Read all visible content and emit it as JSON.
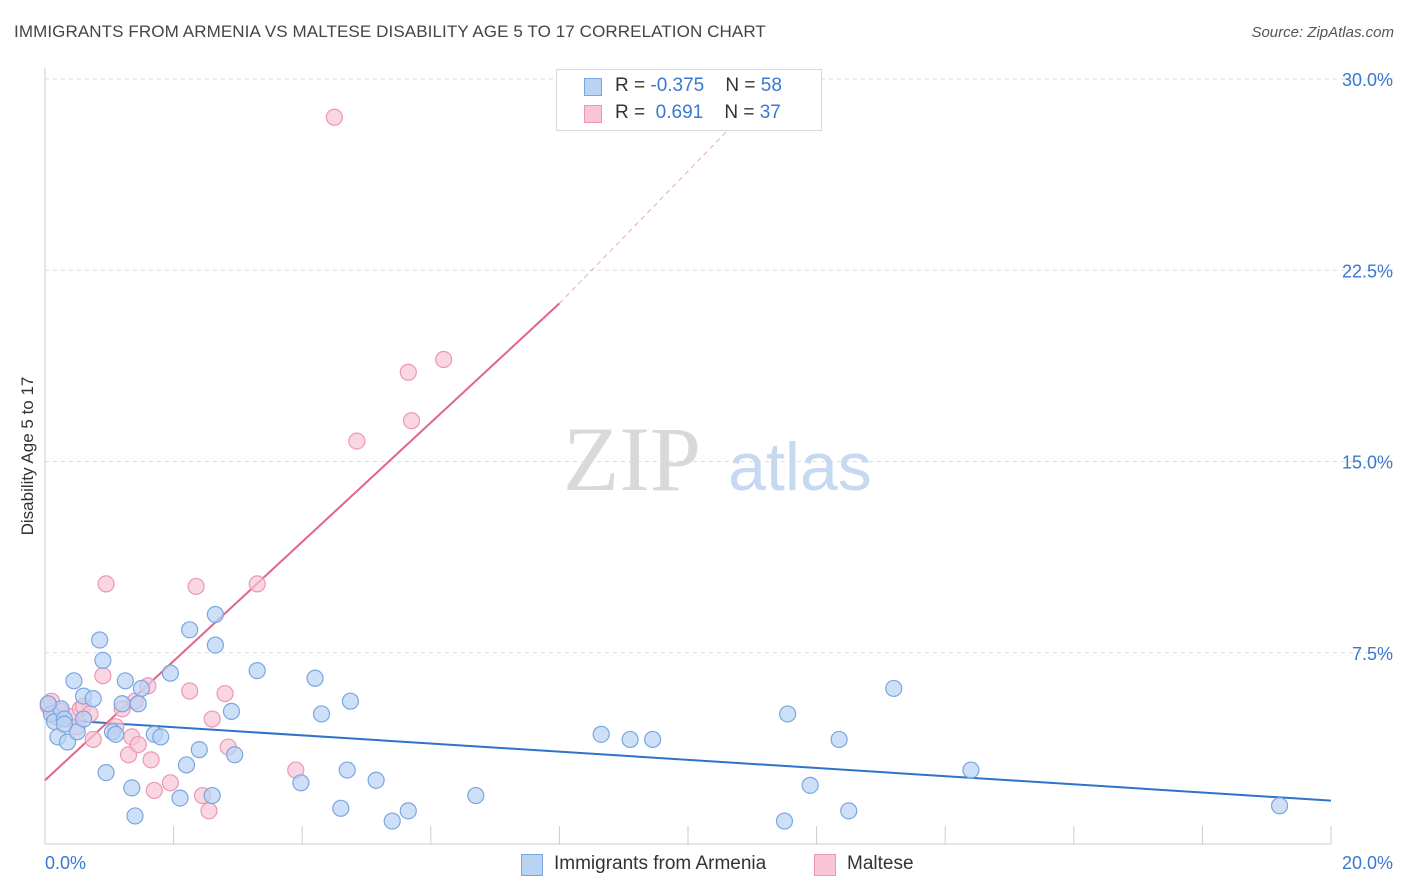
{
  "title": "IMMIGRANTS FROM ARMENIA VS MALTESE DISABILITY AGE 5 TO 17 CORRELATION CHART",
  "source": "Source: ZipAtlas.com",
  "watermark": {
    "zip": "ZIP",
    "atlas": "atlas"
  },
  "colors": {
    "blue_fill": "#b9d3f3",
    "blue_stroke": "#7aa6e0",
    "blue_line": "#2f73c8",
    "pink_fill": "#f8c5d5",
    "pink_stroke": "#ec97b3",
    "pink_line": "#e0648c",
    "axis_text": "#3a78d0",
    "grid": "#dddddd"
  },
  "stats": {
    "rows": [
      {
        "r_label": "R = ",
        "r_value": "-0.375",
        "n_label": "N = ",
        "n_value": "58",
        "color": "blue"
      },
      {
        "r_label": "R = ",
        "r_value": " 0.691",
        "n_label": "N = ",
        "n_value": "37",
        "color": "pink"
      }
    ]
  },
  "legend": [
    {
      "label": "Immigrants from Armenia",
      "color": "blue"
    },
    {
      "label": "Maltese",
      "color": "pink"
    }
  ],
  "chart_data": {
    "type": "scatter",
    "title": "IMMIGRANTS FROM ARMENIA VS MALTESE DISABILITY AGE 5 TO 17 CORRELATION CHART",
    "xlabel": "",
    "ylabel": "Disability Age 5 to 17",
    "xlim": [
      0,
      20
    ],
    "ylim": [
      0,
      30
    ],
    "x_tick_labels": [
      {
        "value": 0,
        "label": "0.0%"
      },
      {
        "value": 20,
        "label": "20.0%"
      }
    ],
    "y_tick_labels": [
      {
        "value": 7.5,
        "label": "7.5%"
      },
      {
        "value": 15,
        "label": "15.0%"
      },
      {
        "value": 22.5,
        "label": "22.5%"
      },
      {
        "value": 30,
        "label": "30.0%"
      }
    ],
    "grid": true,
    "legend_position": "bottom-center",
    "series": [
      {
        "name": "Immigrants from Armenia",
        "color": "blue",
        "r": -0.375,
        "n": 58,
        "trend": {
          "x": [
            0,
            20
          ],
          "y": [
            4.9,
            1.7
          ],
          "dashed_to": null
        },
        "points": [
          [
            0.1,
            5.1
          ],
          [
            0.15,
            4.8
          ],
          [
            0.2,
            4.2
          ],
          [
            0.25,
            5.3
          ],
          [
            0.3,
            4.9
          ],
          [
            0.35,
            4.0
          ],
          [
            0.45,
            6.4
          ],
          [
            0.5,
            4.4
          ],
          [
            0.6,
            5.8
          ],
          [
            0.75,
            5.7
          ],
          [
            0.85,
            8.0
          ],
          [
            0.9,
            7.2
          ],
          [
            0.95,
            2.8
          ],
          [
            1.05,
            4.4
          ],
          [
            1.1,
            4.3
          ],
          [
            1.2,
            5.5
          ],
          [
            1.25,
            6.4
          ],
          [
            1.35,
            2.2
          ],
          [
            1.4,
            1.1
          ],
          [
            1.45,
            5.5
          ],
          [
            1.5,
            6.1
          ],
          [
            1.7,
            4.3
          ],
          [
            1.8,
            4.2
          ],
          [
            1.95,
            6.7
          ],
          [
            2.1,
            1.8
          ],
          [
            2.2,
            3.1
          ],
          [
            2.25,
            8.4
          ],
          [
            2.4,
            3.7
          ],
          [
            2.6,
            1.9
          ],
          [
            2.65,
            9.0
          ],
          [
            2.65,
            7.8
          ],
          [
            2.9,
            5.2
          ],
          [
            2.95,
            3.5
          ],
          [
            3.3,
            6.8
          ],
          [
            3.98,
            2.4
          ],
          [
            4.2,
            6.5
          ],
          [
            4.3,
            5.1
          ],
          [
            4.6,
            1.4
          ],
          [
            4.7,
            2.9
          ],
          [
            4.75,
            5.6
          ],
          [
            5.15,
            2.5
          ],
          [
            5.4,
            0.9
          ],
          [
            5.65,
            1.3
          ],
          [
            6.7,
            1.9
          ],
          [
            8.65,
            4.3
          ],
          [
            9.1,
            4.1
          ],
          [
            9.45,
            4.1
          ],
          [
            11.5,
            0.9
          ],
          [
            11.55,
            5.1
          ],
          [
            11.9,
            2.3
          ],
          [
            12.35,
            4.1
          ],
          [
            12.5,
            1.3
          ],
          [
            13.2,
            6.1
          ],
          [
            14.4,
            2.9
          ],
          [
            19.2,
            1.5
          ],
          [
            0.05,
            5.5
          ],
          [
            0.3,
            4.7
          ],
          [
            0.6,
            4.9
          ]
        ]
      },
      {
        "name": "Maltese",
        "color": "pink",
        "r": 0.691,
        "n": 37,
        "trend": {
          "x": [
            0,
            8.0
          ],
          "y": [
            2.5,
            21.2
          ],
          "dashed_to": {
            "x": 10.7,
            "y": 28.2
          }
        },
        "points": [
          [
            0.05,
            5.4
          ],
          [
            0.15,
            5.0
          ],
          [
            0.25,
            5.2
          ],
          [
            0.3,
            4.9
          ],
          [
            0.4,
            5.0
          ],
          [
            0.55,
            5.3
          ],
          [
            0.6,
            5.4
          ],
          [
            0.7,
            5.1
          ],
          [
            0.75,
            4.1
          ],
          [
            0.9,
            6.6
          ],
          [
            0.95,
            10.2
          ],
          [
            1.1,
            4.6
          ],
          [
            1.2,
            5.3
          ],
          [
            1.3,
            3.5
          ],
          [
            1.35,
            4.2
          ],
          [
            1.4,
            5.6
          ],
          [
            1.45,
            3.9
          ],
          [
            1.6,
            6.2
          ],
          [
            1.65,
            3.3
          ],
          [
            1.7,
            2.1
          ],
          [
            1.95,
            2.4
          ],
          [
            2.25,
            6.0
          ],
          [
            2.35,
            10.1
          ],
          [
            2.45,
            1.9
          ],
          [
            2.55,
            1.3
          ],
          [
            2.6,
            4.9
          ],
          [
            2.8,
            5.9
          ],
          [
            2.85,
            3.8
          ],
          [
            3.3,
            10.2
          ],
          [
            3.9,
            2.9
          ],
          [
            4.5,
            28.5
          ],
          [
            4.85,
            15.8
          ],
          [
            5.65,
            18.5
          ],
          [
            5.7,
            16.6
          ],
          [
            6.2,
            19.0
          ],
          [
            0.1,
            5.6
          ],
          [
            0.5,
            4.6
          ]
        ]
      }
    ]
  }
}
